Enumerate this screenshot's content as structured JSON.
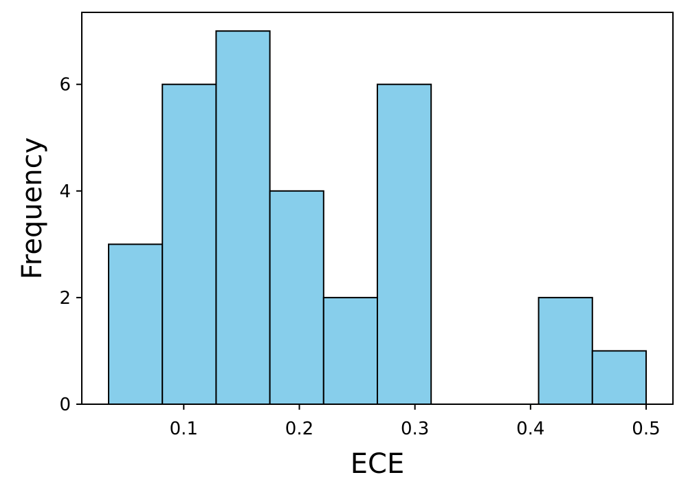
{
  "chart_data": {
    "type": "bar",
    "title": "",
    "xlabel": "ECE",
    "ylabel": "Frequency",
    "bin_edges": [
      0.035,
      0.0815,
      0.128,
      0.1745,
      0.221,
      0.2675,
      0.314,
      0.3605,
      0.407,
      0.4535,
      0.5
    ],
    "values": [
      3,
      6,
      7,
      4,
      2,
      6,
      0,
      0,
      2,
      1
    ],
    "xlim": [
      0.0118,
      0.5232
    ],
    "ylim": [
      0,
      7.35
    ],
    "xticks": [
      0.1,
      0.2,
      0.3,
      0.4,
      0.5
    ],
    "xtick_labels": [
      "0.1",
      "0.2",
      "0.3",
      "0.4",
      "0.5"
    ],
    "yticks": [
      0,
      2,
      4,
      6
    ],
    "ytick_labels": [
      "0",
      "2",
      "4",
      "6"
    ],
    "grid": false,
    "legend": "none",
    "bar_color": "#87CEEB",
    "edge_color": "#000000"
  }
}
